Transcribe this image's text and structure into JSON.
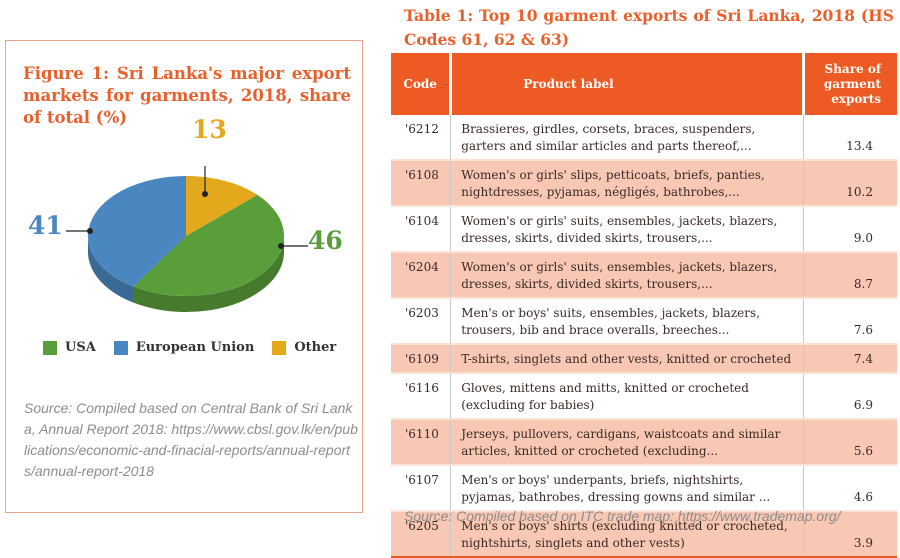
{
  "figure": {
    "title": "Figure 1: Sri Lanka's major export markets for garments, 2018, share of total  (%)",
    "source": "Source: Compiled based on Central Bank of Sri Lanka, Annual Report 2018: https://www.cbsl.gov.lk/en/publications/economic-and-finacial-reports/annual-reports/annual-report-2018",
    "legend": [
      {
        "label": "USA",
        "color": "#5a9e3a"
      },
      {
        "label": "European Union",
        "color": "#4a86c0"
      },
      {
        "label": "Other",
        "color": "#e3a81b"
      }
    ]
  },
  "chart_data": {
    "type": "pie",
    "title": "Figure 1: Sri Lanka's major export markets for garments, 2018, share of total  (%)",
    "categories": [
      "USA",
      "European Union",
      "Other"
    ],
    "values": [
      46,
      41,
      13
    ],
    "labels": [
      "46",
      "41",
      "13"
    ],
    "colors": [
      "#5a9e3a",
      "#4a86c0",
      "#e3a81b"
    ],
    "style": "3d",
    "legend_position": "bottom"
  },
  "table": {
    "title": "Table 1: Top 10 garment exports of Sri Lanka, 2018 (HS Codes 61, 62 & 63)",
    "headers": {
      "code": "Code",
      "label": "Product label",
      "share": "Share of garment exports"
    },
    "header_colors": {
      "background": "#ee5a24",
      "text": "#ffffff",
      "shaded_row": "#f8c8b4"
    },
    "rows": [
      {
        "code": "'6212",
        "label": "Brassieres, girdles, corsets, braces, suspenders, garters and similar articles and parts thereof,...",
        "share": "13.4"
      },
      {
        "code": "'6108",
        "label": "Women's or girls' slips, petticoats, briefs, panties, nightdresses, pyjamas, négligés, bathrobes,...",
        "share": "10.2"
      },
      {
        "code": "'6104",
        "label": "Women's or girls' suits, ensembles, jackets, blazers, dresses, skirts, divided skirts, trousers,...",
        "share": "9.0"
      },
      {
        "code": "'6204",
        "label": "Women's or girls' suits, ensembles, jackets, blazers, dresses, skirts, divided skirts, trousers,...",
        "share": "8.7"
      },
      {
        "code": "'6203",
        "label": "Men's or boys' suits, ensembles, jackets, blazers, trousers, bib and brace overalls, breeches...",
        "share": "7.6"
      },
      {
        "code": "'6109",
        "label": "T-shirts, singlets and other vests, knitted or crocheted",
        "share": "7.4"
      },
      {
        "code": "'6116",
        "label": "Gloves, mittens and mitts, knitted or crocheted (excluding for babies)",
        "share": "6.9"
      },
      {
        "code": "'6110",
        "label": "Jerseys, pullovers, cardigans, waistcoats and similar articles, knitted or crocheted (excluding...",
        "share": "5.6"
      },
      {
        "code": "'6107",
        "label": "Men's or boys' underpants, briefs, nightshirts, pyjamas, bathrobes, dressing gowns and similar ...",
        "share": "4.6"
      },
      {
        "code": "'6205",
        "label": "Men's or boys' shirts (excluding knitted or crocheted, nightshirts, singlets and other vests)",
        "share": "3.9"
      }
    ],
    "source": "Source: Compiled based on ITC trade map: https://www.trademap.org/"
  }
}
